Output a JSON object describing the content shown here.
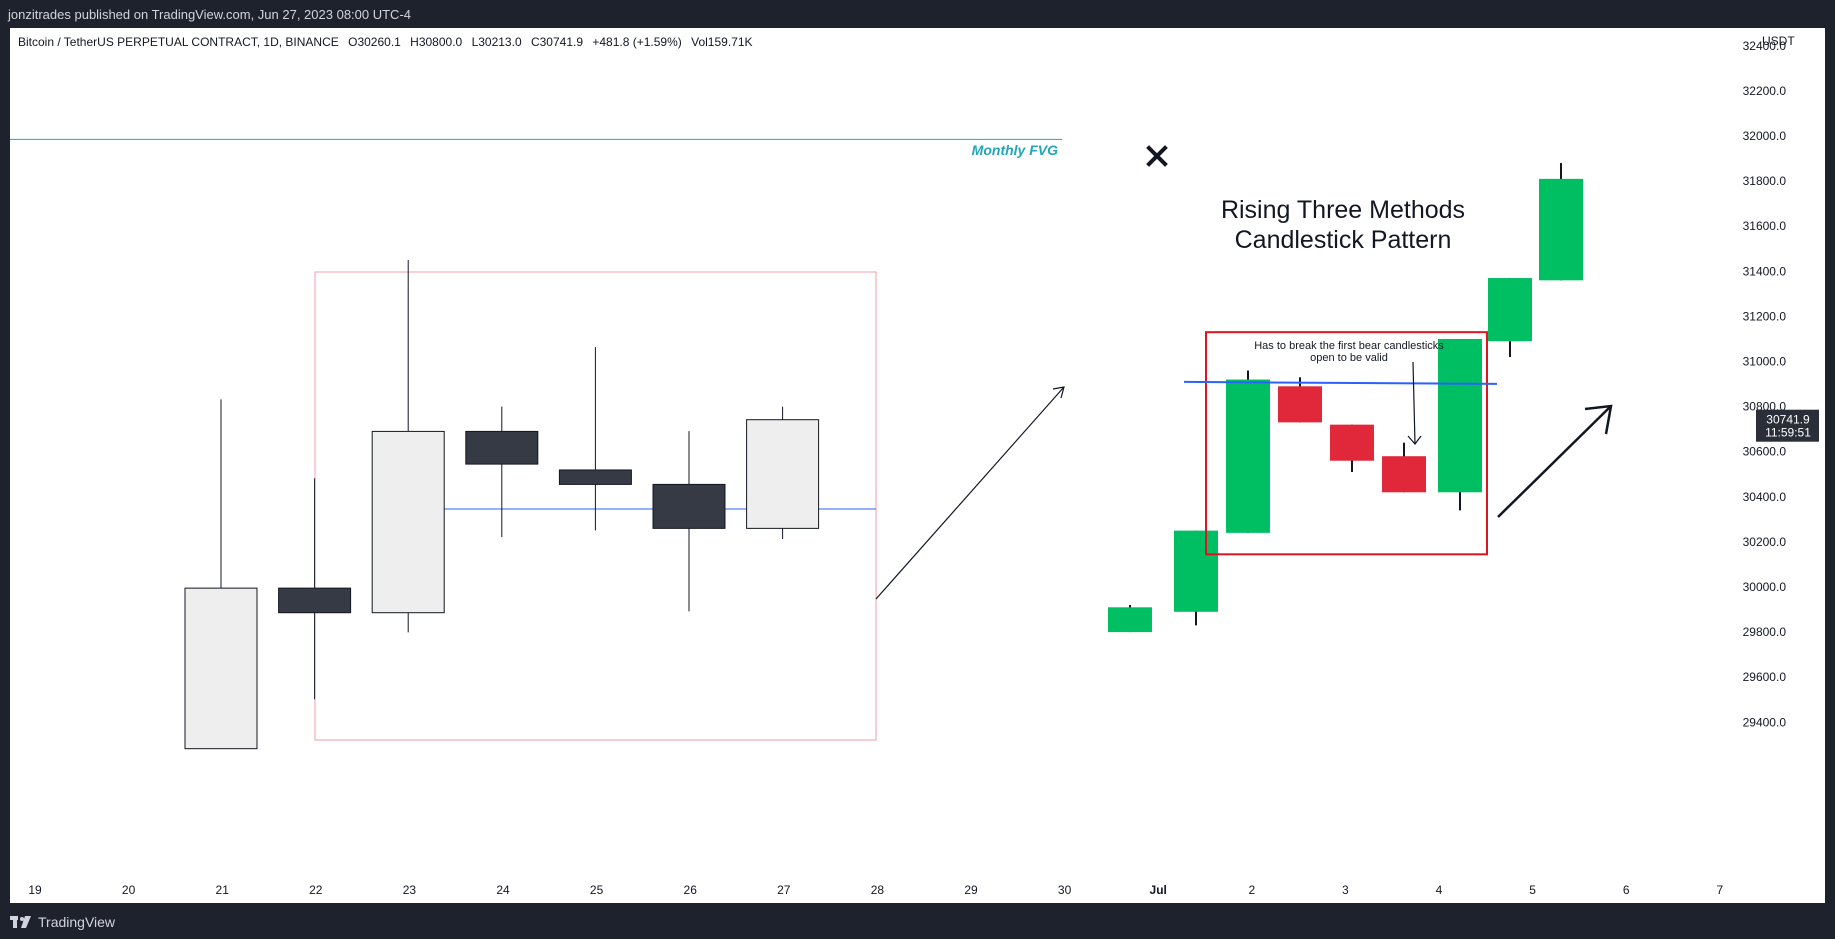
{
  "header": {
    "publish_line": "jonzitrades published on TradingView.com, Jun 27, 2023 08:00 UTC-4"
  },
  "footer": {
    "brand": "TradingView"
  },
  "legend": {
    "symbol": "Bitcoin / TetherUS PERPETUAL CONTRACT, 1D, BINANCE",
    "open": "O30260.1",
    "high": "H30800.0",
    "low": "L30213.0",
    "close": "C30741.9",
    "change": "+481.8 (+1.59%)",
    "volume": "Vol159.71K"
  },
  "price_axis": {
    "currency": "USDT",
    "last_price": "30741.9",
    "countdown": "11:59:51",
    "tag_color": "#2a2e39"
  },
  "annotations": {
    "fvg_label": "Monthly FVG",
    "pattern_title_line1": "Rising Three Methods",
    "pattern_title_line2": "Candlestick Pattern",
    "note_line1": "Has to break the first bear candlesticks",
    "note_line2": "open to be valid",
    "fvg_color": "#22a7b8",
    "box_color": "#e0141e",
    "level_color": "#2962ff",
    "bull_color": "#00bf63",
    "bear_color": "#e0283a"
  },
  "chart_data": {
    "type": "candlestick",
    "yaxis": {
      "ylim": [
        29300,
        32450
      ],
      "ticks": [
        "29400.0",
        "29600.0",
        "29800.0",
        "30000.0",
        "30200.0",
        "30400.0",
        "30600.0",
        "30800.0",
        "31000.0",
        "31200.0",
        "31400.0",
        "31600.0",
        "31800.0",
        "32000.0",
        "32200.0",
        "32400.0"
      ]
    },
    "xaxis": {
      "ticks": [
        "19",
        "20",
        "21",
        "22",
        "23",
        "24",
        "25",
        "26",
        "27",
        "28",
        "29",
        "30",
        "Jul",
        "2",
        "3",
        "4",
        "5",
        "6",
        "7"
      ]
    },
    "levels": {
      "monthly_fvg": 31985,
      "first_bear_open": 30905,
      "price_box_top": 31130,
      "price_box_bottom": 30145
    },
    "real_candles": [
      {
        "date": "21",
        "open": 29283,
        "high": 30832,
        "low": 29283,
        "close": 29995
      },
      {
        "date": "22",
        "open": 29995,
        "high": 30482,
        "low": 29502,
        "close": 29886
      },
      {
        "date": "23",
        "open": 29886,
        "high": 31450,
        "low": 29799,
        "close": 30690
      },
      {
        "date": "24",
        "open": 30690,
        "high": 30800,
        "low": 30221,
        "close": 30545
      },
      {
        "date": "25",
        "open": 30519,
        "high": 31064,
        "low": 30251,
        "close": 30455
      },
      {
        "date": "26",
        "open": 30455,
        "high": 30691,
        "low": 29892,
        "close": 30260
      },
      {
        "date": "27",
        "open": 30260,
        "high": 30800,
        "low": 30213,
        "close": 30741.9
      }
    ],
    "pattern_candles": [
      {
        "position": "30",
        "open": 29800,
        "high": 29920,
        "low": 29800,
        "close": 29910
      },
      {
        "position": "Jul",
        "open": 29890,
        "high": 30250,
        "low": 29830,
        "close": 30250
      },
      {
        "position": "Jul",
        "open": 30240,
        "high": 30960,
        "low": 30240,
        "close": 30920
      },
      {
        "position": "2",
        "open": 30890,
        "high": 30930,
        "low": 30730,
        "close": 30730
      },
      {
        "position": "3",
        "open": 30720,
        "high": 30720,
        "low": 30510,
        "close": 30560
      },
      {
        "position": "3",
        "open": 30580,
        "high": 30640,
        "low": 30420,
        "close": 30420
      },
      {
        "position": "4",
        "open": 30420,
        "high": 31100,
        "low": 30340,
        "close": 31100
      },
      {
        "position": "4",
        "open": 31090,
        "high": 31370,
        "low": 31020,
        "close": 31370
      },
      {
        "position": "5",
        "open": 31360,
        "high": 31880,
        "low": 31360,
        "close": 31810
      }
    ]
  }
}
